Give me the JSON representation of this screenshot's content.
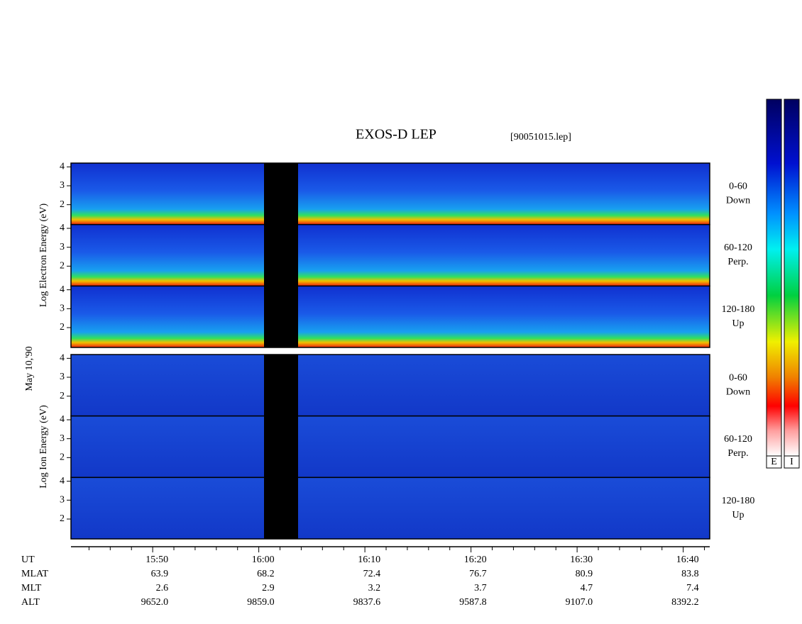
{
  "header": {
    "title": "EXOS-D LEP",
    "file": "[90051015.lep]"
  },
  "date": "May 10,'90",
  "groups": [
    {
      "label": "Log Electron Energy (eV)",
      "panels": [
        {
          "angle": "0-60",
          "direction": "Down"
        },
        {
          "angle": "60-120",
          "direction": "Perp."
        },
        {
          "angle": "120-180",
          "direction": "Up"
        }
      ]
    },
    {
      "label": "Log Ion Energy (eV)",
      "panels": [
        {
          "angle": "0-60",
          "direction": "Down"
        },
        {
          "angle": "60-120",
          "direction": "Perp."
        },
        {
          "angle": "120-180",
          "direction": "Up"
        }
      ]
    }
  ],
  "ylim": [
    0.95,
    4.2
  ],
  "yticks": [
    2,
    3,
    4
  ],
  "xlim": [
    942.3,
    1002.5
  ],
  "xticks": [
    {
      "value": 950,
      "label": "15:50"
    },
    {
      "value": 960,
      "label": "16:00"
    },
    {
      "value": 970,
      "label": "16:10"
    },
    {
      "value": 980,
      "label": "16:20"
    },
    {
      "value": 990,
      "label": "16:30"
    },
    {
      "value": 1000,
      "label": "16:40"
    }
  ],
  "xminor": [
    944,
    946,
    948,
    952,
    954,
    956,
    958,
    962,
    964,
    966,
    968,
    972,
    974,
    976,
    978,
    982,
    984,
    986,
    988,
    992,
    994,
    996,
    998,
    1002
  ],
  "orbit": [
    {
      "name": "UT"
    },
    {
      "name": "MLAT",
      "values": [
        "63.9",
        "68.2",
        "72.4",
        "76.7",
        "80.9",
        "83.8"
      ]
    },
    {
      "name": "MLT",
      "values": [
        "2.6",
        "2.9",
        "3.2",
        "3.7",
        "4.7",
        "7.4"
      ]
    },
    {
      "name": "ALT",
      "values": [
        "9652.0",
        "9859.0",
        "9837.6",
        "9587.8",
        "9107.0",
        "8392.2"
      ]
    }
  ],
  "colorbar": [
    "E",
    "I"
  ]
}
